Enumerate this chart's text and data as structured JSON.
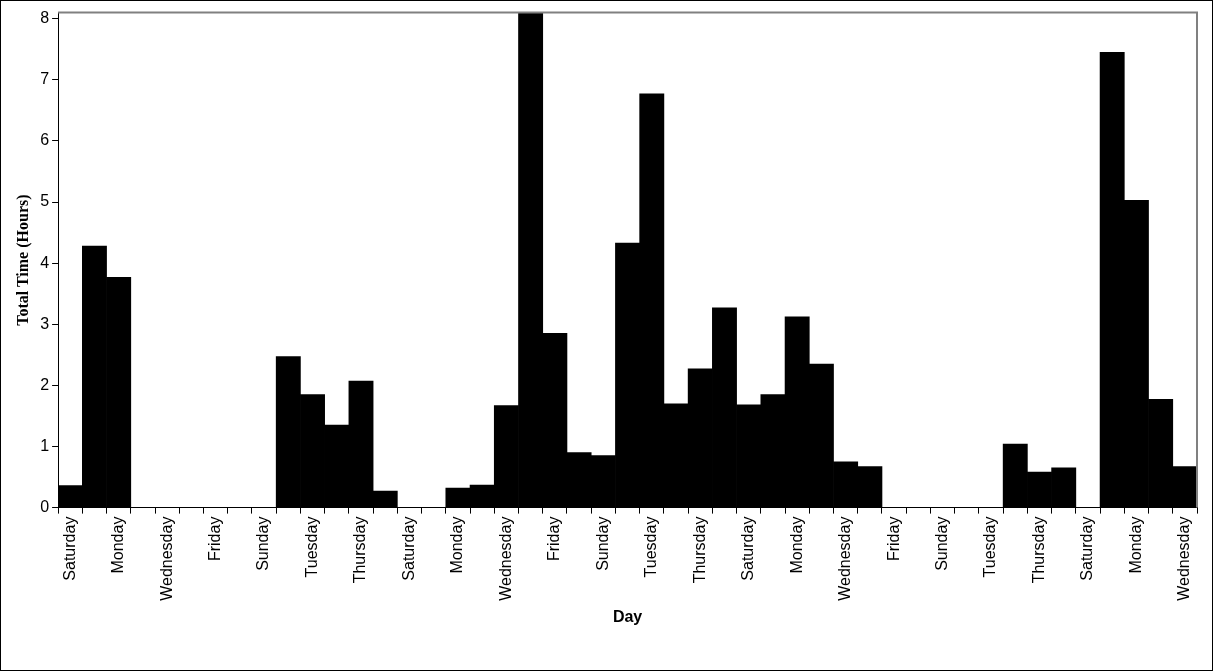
{
  "chart_data": {
    "type": "bar",
    "xlabel": "Day",
    "ylabel": "Total Time (Hours)",
    "categories": [
      "Saturday",
      null,
      "Monday",
      null,
      "Wednesday",
      null,
      "Friday",
      null,
      "Sunday",
      null,
      "Tuesday",
      null,
      "Thursday",
      null,
      "Saturday",
      null,
      "Monday",
      null,
      "Wednesday",
      null,
      "Friday",
      null,
      "Sunday",
      null,
      "Tuesday",
      null,
      "Thursday",
      null,
      "Saturday",
      null,
      "Monday",
      null,
      "Wednesday",
      null,
      "Friday",
      null,
      "Sunday",
      null,
      "Tuesday",
      null,
      "Thursday",
      null,
      "Saturday",
      null,
      "Monday",
      null,
      "Wednesday"
    ],
    "values": [
      0.36,
      4.28,
      3.77,
      0,
      0,
      0,
      0,
      0,
      0,
      2.47,
      1.85,
      1.35,
      2.07,
      0.27,
      0,
      0,
      0.32,
      0.37,
      1.67,
      8.1,
      2.85,
      0.9,
      0.85,
      4.33,
      6.77,
      1.7,
      2.27,
      3.27,
      1.68,
      1.85,
      3.12,
      2.35,
      0.75,
      0.67,
      0,
      0,
      0,
      0,
      0,
      1.04,
      0.58,
      0.65,
      0,
      7.45,
      5.03,
      1.77,
      0.67
    ],
    "color": "#000000",
    "ylim": [
      0,
      8.1
    ],
    "yticks": [
      0,
      1,
      2,
      3,
      4,
      5,
      6,
      7,
      8
    ]
  }
}
